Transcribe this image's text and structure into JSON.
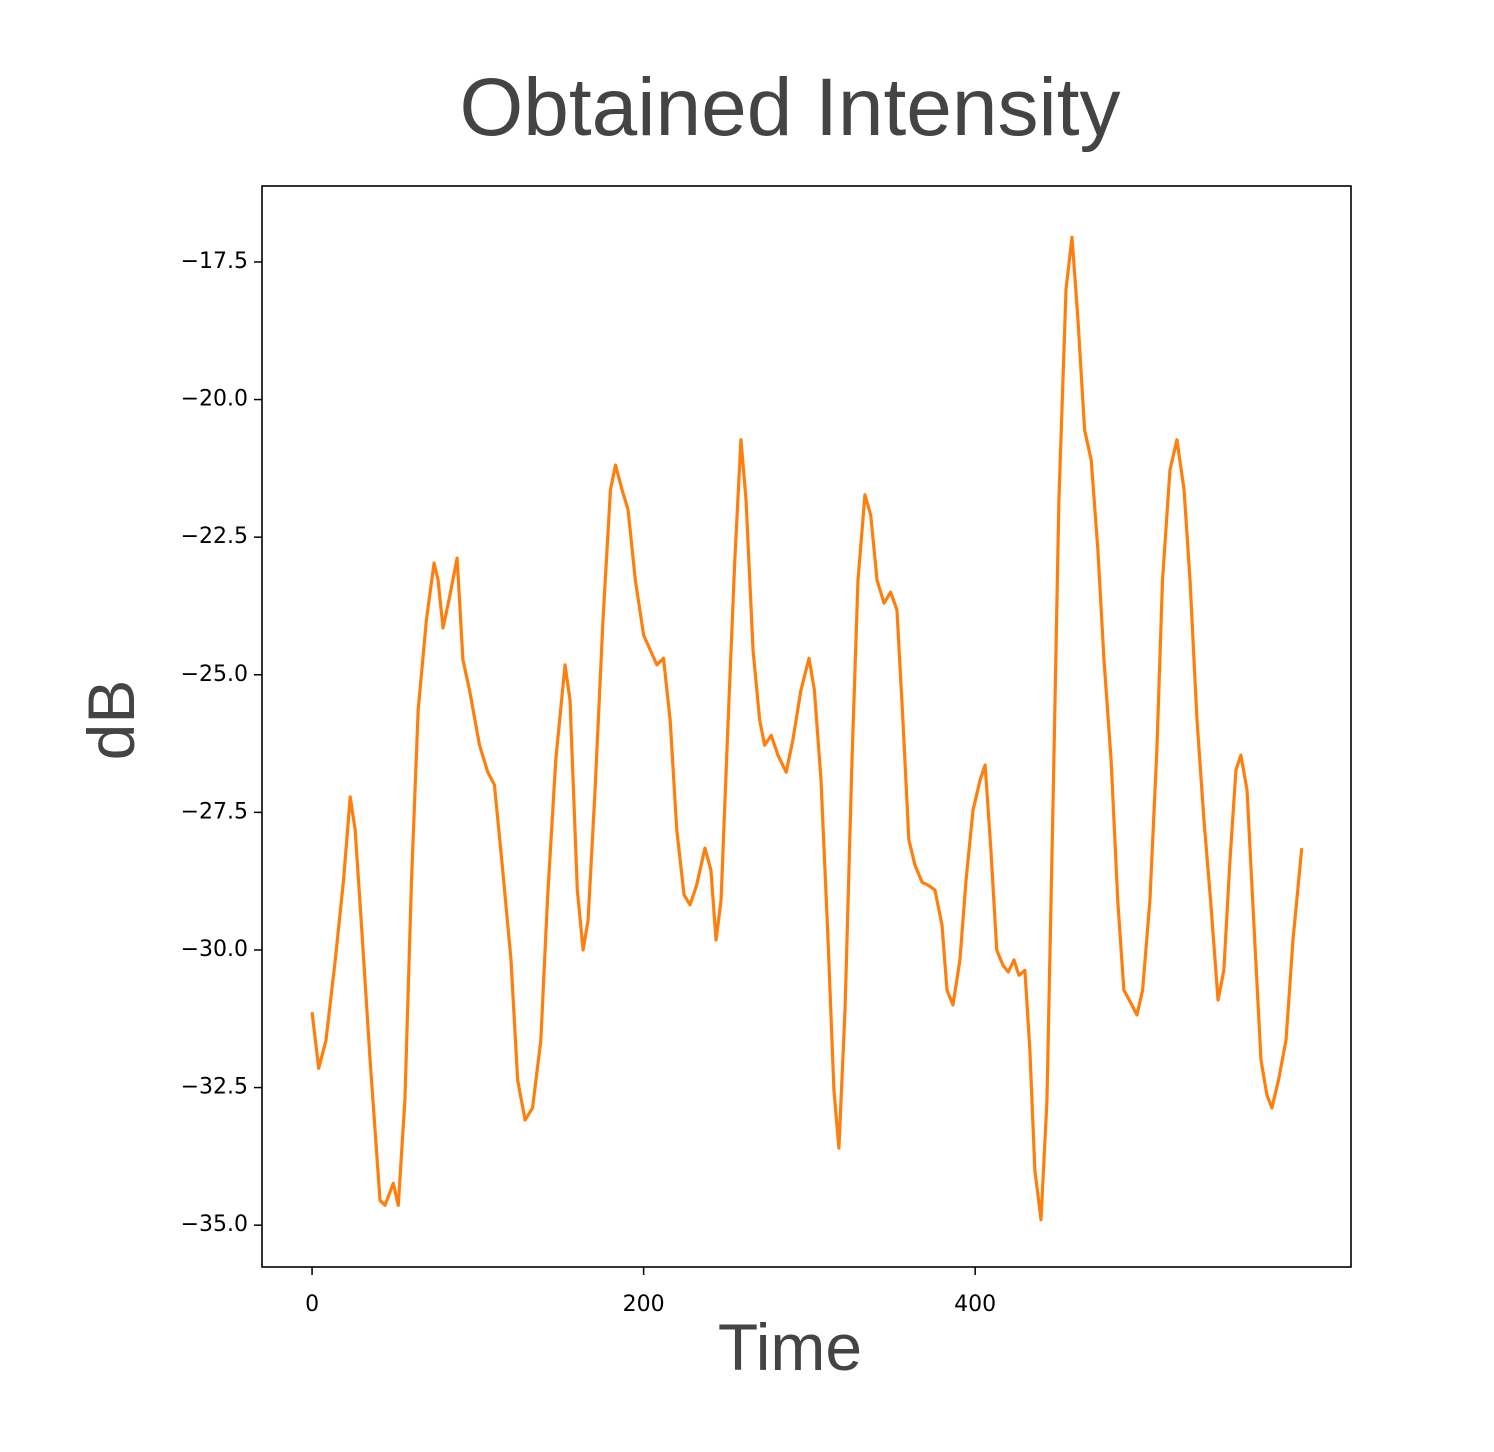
{
  "chart_data": {
    "type": "line",
    "title": "Obtained Intensity",
    "x_label": "Time",
    "y_label": "dB",
    "xlim": [
      -30.2,
      626.7
    ],
    "ylim": [
      -35.76,
      -16.12
    ],
    "xticks": [
      0,
      200,
      400
    ],
    "yticks": [
      {
        "value": -35,
        "label": "−35.0"
      },
      {
        "value": -32.5,
        "label": "−32.5"
      },
      {
        "value": -30,
        "label": "−30.0"
      },
      {
        "value": -27.5,
        "label": "−27.5"
      },
      {
        "value": -25,
        "label": "−25.0"
      },
      {
        "value": -22.5,
        "label": "−22.5"
      },
      {
        "value": -20,
        "label": "−20.0"
      },
      {
        "value": -17.5,
        "label": "−17.5"
      }
    ],
    "grid": false,
    "color": "#ff7f0e",
    "x": [
      0,
      4,
      8.4,
      14,
      19,
      23,
      26,
      30,
      35,
      41,
      44,
      49,
      52,
      56,
      60,
      64,
      69,
      73.6,
      76,
      79,
      82.6,
      87.5,
      91,
      95,
      101,
      106,
      110,
      115,
      120,
      124,
      128.5,
      133,
      138,
      142,
      147,
      152.6,
      155.6,
      160,
      163.5,
      166.5,
      170.7,
      175.5,
      180,
      183,
      187,
      190.6,
      195,
      200,
      204,
      208,
      212,
      216,
      220,
      224.4,
      228,
      232,
      237,
      240.6,
      243.7,
      246.7,
      251,
      255,
      258.7,
      261.8,
      266,
      270,
      273,
      277,
      281,
      286,
      290,
      294.9,
      299.8,
      303,
      307,
      311,
      314.8,
      317.8,
      321.5,
      325.7,
      329.3,
      333.5,
      337,
      340.8,
      345,
      349,
      352.8,
      356.4,
      360,
      363.7,
      368,
      371.5,
      375.7,
      380,
      383,
      386.6,
      390.8,
      394.5,
      398.7,
      403,
      406,
      409.5,
      413,
      416.8,
      420,
      423.4,
      426.4,
      430,
      433,
      436,
      439.7,
      443.3,
      447,
      450.5,
      454.8,
      458.4,
      462,
      466,
      470,
      474,
      477.7,
      482,
      486,
      489.7,
      494,
      497.6,
      501,
      505.4,
      509.6,
      513,
      517.5,
      521.7,
      526,
      529.6,
      533.8,
      538,
      542,
      546.5,
      550,
      553.7,
      557.3,
      560.3,
      564,
      568,
      572.4,
      576,
      579,
      583,
      587.5,
      591.7,
      597
    ],
    "values": [
      -31.13,
      -32.15,
      -31.64,
      -30.18,
      -28.73,
      -27.22,
      -27.82,
      -29.64,
      -32.0,
      -34.55,
      -34.64,
      -34.24,
      -34.64,
      -32.73,
      -28.73,
      -25.64,
      -24.0,
      -22.97,
      -23.28,
      -24.15,
      -23.64,
      -22.88,
      -24.73,
      -25.28,
      -26.28,
      -26.77,
      -27.0,
      -28.55,
      -30.18,
      -32.36,
      -33.09,
      -32.87,
      -31.64,
      -29.09,
      -26.55,
      -24.82,
      -25.46,
      -28.91,
      -30.0,
      -29.46,
      -27.1,
      -24.0,
      -21.64,
      -21.19,
      -21.64,
      -22.0,
      -23.28,
      -24.28,
      -24.55,
      -24.82,
      -24.7,
      -25.82,
      -27.82,
      -29.0,
      -29.18,
      -28.82,
      -28.15,
      -28.55,
      -29.82,
      -29.1,
      -25.82,
      -22.92,
      -20.73,
      -21.83,
      -24.55,
      -25.82,
      -26.28,
      -26.1,
      -26.46,
      -26.77,
      -26.19,
      -25.28,
      -24.7,
      -25.28,
      -26.91,
      -29.64,
      -32.55,
      -33.6,
      -31.09,
      -26.55,
      -23.28,
      -21.73,
      -22.1,
      -23.28,
      -23.7,
      -23.5,
      -23.82,
      -25.82,
      -28.0,
      -28.46,
      -28.77,
      -28.82,
      -28.91,
      -29.55,
      -30.73,
      -31.0,
      -30.18,
      -28.73,
      -27.46,
      -26.91,
      -26.64,
      -28.19,
      -30.0,
      -30.28,
      -30.4,
      -30.18,
      -30.46,
      -30.37,
      -31.82,
      -34.0,
      -34.9,
      -32.73,
      -27.28,
      -21.83,
      -18.0,
      -17.05,
      -18.55,
      -20.55,
      -21.1,
      -22.73,
      -24.73,
      -26.55,
      -29.1,
      -30.73,
      -30.97,
      -31.18,
      -30.73,
      -29.1,
      -26.37,
      -23.28,
      -21.28,
      -20.73,
      -21.64,
      -23.28,
      -25.82,
      -27.64,
      -29.1,
      -30.91,
      -30.37,
      -28.37,
      -26.73,
      -26.46,
      -27.1,
      -29.46,
      -32.0,
      -32.64,
      -32.87,
      -32.36,
      -31.64,
      -29.82,
      -28.15
    ]
  }
}
